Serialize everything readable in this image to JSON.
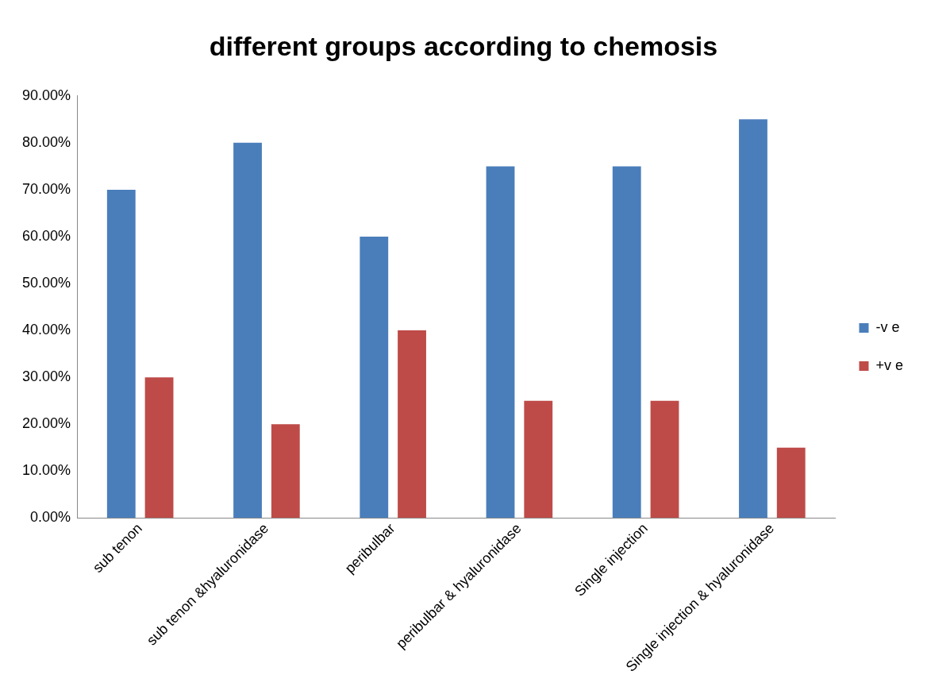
{
  "chart_data": {
    "type": "bar",
    "title": "different groups according to chemosis",
    "categories": [
      "sub tenon",
      "sub tenon &hyaluronidase",
      "peribulbar",
      "peribulbar & hyaluronidase",
      "Single injection",
      "Single injection & hyaluronidase"
    ],
    "series": [
      {
        "name": "-v e",
        "color": "#4a7ebb",
        "values": [
          70,
          80,
          60,
          75,
          75,
          85
        ]
      },
      {
        "name": "+v e",
        "color": "#be4b48",
        "values": [
          30,
          20,
          40,
          25,
          25,
          15
        ]
      }
    ],
    "ylim": [
      0,
      90
    ],
    "yticks": [
      {
        "value": 0,
        "label": "0.00%"
      },
      {
        "value": 10,
        "label": "10.00%"
      },
      {
        "value": 20,
        "label": "20.00%"
      },
      {
        "value": 30,
        "label": "30.00%"
      },
      {
        "value": 40,
        "label": "40.00%"
      },
      {
        "value": 50,
        "label": "50.00%"
      },
      {
        "value": 60,
        "label": "60.00%"
      },
      {
        "value": 70,
        "label": "70.00%"
      },
      {
        "value": 80,
        "label": "80.00%"
      },
      {
        "value": 90,
        "label": "90.00%"
      }
    ],
    "grid": false,
    "legend": "right"
  }
}
